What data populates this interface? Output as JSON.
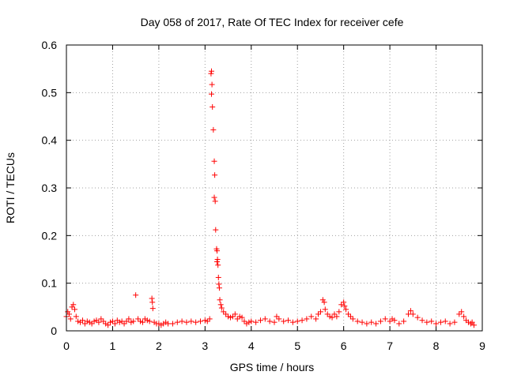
{
  "chart_data": {
    "type": "scatter",
    "title": "Day 058 of 2017, Rate Of TEC Index for receiver cefe",
    "xlabel": "GPS time / hours",
    "ylabel": "ROTI / TECUs",
    "xlim": [
      0,
      9
    ],
    "ylim": [
      0,
      0.6
    ],
    "xticks": [
      0,
      1,
      2,
      3,
      4,
      5,
      6,
      7,
      8,
      9
    ],
    "xtick_labels": [
      "0",
      "1",
      "2",
      "3",
      "4",
      "5",
      "6",
      "7",
      "8",
      "9"
    ],
    "yticks": [
      0,
      0.1,
      0.2,
      0.3,
      0.4,
      0.5,
      0.6
    ],
    "ytick_labels": [
      "0",
      "0.1",
      "0.2",
      "0.3",
      "0.4",
      "0.5",
      "0.6"
    ],
    "grid": true,
    "marker": "+",
    "color": "#ff0000",
    "series": [
      {
        "name": "ROTI",
        "points": [
          [
            0.0,
            0.03
          ],
          [
            0.03,
            0.04
          ],
          [
            0.06,
            0.035
          ],
          [
            0.09,
            0.025
          ],
          [
            0.12,
            0.05
          ],
          [
            0.15,
            0.055
          ],
          [
            0.18,
            0.045
          ],
          [
            0.21,
            0.03
          ],
          [
            0.25,
            0.02
          ],
          [
            0.3,
            0.018
          ],
          [
            0.35,
            0.022
          ],
          [
            0.4,
            0.015
          ],
          [
            0.45,
            0.02
          ],
          [
            0.5,
            0.018
          ],
          [
            0.55,
            0.015
          ],
          [
            0.6,
            0.02
          ],
          [
            0.65,
            0.022
          ],
          [
            0.7,
            0.018
          ],
          [
            0.75,
            0.025
          ],
          [
            0.8,
            0.02
          ],
          [
            0.85,
            0.015
          ],
          [
            0.9,
            0.012
          ],
          [
            0.95,
            0.018
          ],
          [
            1.0,
            0.02
          ],
          [
            1.05,
            0.015
          ],
          [
            1.1,
            0.022
          ],
          [
            1.15,
            0.018
          ],
          [
            1.2,
            0.02
          ],
          [
            1.25,
            0.015
          ],
          [
            1.3,
            0.02
          ],
          [
            1.35,
            0.025
          ],
          [
            1.4,
            0.018
          ],
          [
            1.45,
            0.02
          ],
          [
            1.5,
            0.075
          ],
          [
            1.55,
            0.025
          ],
          [
            1.6,
            0.02
          ],
          [
            1.65,
            0.018
          ],
          [
            1.7,
            0.025
          ],
          [
            1.75,
            0.022
          ],
          [
            1.8,
            0.02
          ],
          [
            1.85,
            0.068
          ],
          [
            1.86,
            0.06
          ],
          [
            1.87,
            0.047
          ],
          [
            1.9,
            0.018
          ],
          [
            1.95,
            0.015
          ],
          [
            2.0,
            0.015
          ],
          [
            2.05,
            0.012
          ],
          [
            2.1,
            0.015
          ],
          [
            2.15,
            0.018
          ],
          [
            2.2,
            0.015
          ],
          [
            2.3,
            0.015
          ],
          [
            2.4,
            0.018
          ],
          [
            2.5,
            0.02
          ],
          [
            2.6,
            0.018
          ],
          [
            2.7,
            0.02
          ],
          [
            2.8,
            0.018
          ],
          [
            2.9,
            0.02
          ],
          [
            3.0,
            0.022
          ],
          [
            3.05,
            0.02
          ],
          [
            3.1,
            0.025
          ],
          [
            3.13,
            0.54
          ],
          [
            3.14,
            0.545
          ],
          [
            3.15,
            0.517
          ],
          [
            3.14,
            0.497
          ],
          [
            3.16,
            0.47
          ],
          [
            3.18,
            0.422
          ],
          [
            3.2,
            0.356
          ],
          [
            3.21,
            0.327
          ],
          [
            3.2,
            0.28
          ],
          [
            3.22,
            0.272
          ],
          [
            3.23,
            0.212
          ],
          [
            3.25,
            0.172
          ],
          [
            3.26,
            0.168
          ],
          [
            3.27,
            0.15
          ],
          [
            3.26,
            0.145
          ],
          [
            3.28,
            0.138
          ],
          [
            3.29,
            0.112
          ],
          [
            3.3,
            0.098
          ],
          [
            3.31,
            0.09
          ],
          [
            3.32,
            0.065
          ],
          [
            3.34,
            0.055
          ],
          [
            3.36,
            0.048
          ],
          [
            3.4,
            0.04
          ],
          [
            3.45,
            0.035
          ],
          [
            3.5,
            0.03
          ],
          [
            3.55,
            0.028
          ],
          [
            3.6,
            0.03
          ],
          [
            3.65,
            0.035
          ],
          [
            3.7,
            0.025
          ],
          [
            3.75,
            0.03
          ],
          [
            3.8,
            0.028
          ],
          [
            3.85,
            0.02
          ],
          [
            3.9,
            0.015
          ],
          [
            3.95,
            0.018
          ],
          [
            4.0,
            0.02
          ],
          [
            4.1,
            0.018
          ],
          [
            4.2,
            0.022
          ],
          [
            4.3,
            0.025
          ],
          [
            4.4,
            0.02
          ],
          [
            4.5,
            0.018
          ],
          [
            4.55,
            0.03
          ],
          [
            4.6,
            0.025
          ],
          [
            4.7,
            0.02
          ],
          [
            4.8,
            0.022
          ],
          [
            4.9,
            0.018
          ],
          [
            5.0,
            0.02
          ],
          [
            5.1,
            0.022
          ],
          [
            5.2,
            0.025
          ],
          [
            5.3,
            0.03
          ],
          [
            5.4,
            0.025
          ],
          [
            5.45,
            0.035
          ],
          [
            5.5,
            0.04
          ],
          [
            5.55,
            0.065
          ],
          [
            5.58,
            0.06
          ],
          [
            5.6,
            0.045
          ],
          [
            5.65,
            0.035
          ],
          [
            5.7,
            0.03
          ],
          [
            5.75,
            0.028
          ],
          [
            5.8,
            0.035
          ],
          [
            5.85,
            0.03
          ],
          [
            5.9,
            0.04
          ],
          [
            5.95,
            0.055
          ],
          [
            6.0,
            0.06
          ],
          [
            6.02,
            0.052
          ],
          [
            6.05,
            0.045
          ],
          [
            6.1,
            0.035
          ],
          [
            6.15,
            0.03
          ],
          [
            6.2,
            0.025
          ],
          [
            6.3,
            0.02
          ],
          [
            6.4,
            0.018
          ],
          [
            6.5,
            0.015
          ],
          [
            6.6,
            0.018
          ],
          [
            6.7,
            0.015
          ],
          [
            6.8,
            0.02
          ],
          [
            6.9,
            0.025
          ],
          [
            7.0,
            0.02
          ],
          [
            7.05,
            0.025
          ],
          [
            7.1,
            0.022
          ],
          [
            7.2,
            0.015
          ],
          [
            7.3,
            0.02
          ],
          [
            7.4,
            0.035
          ],
          [
            7.45,
            0.042
          ],
          [
            7.5,
            0.035
          ],
          [
            7.6,
            0.028
          ],
          [
            7.7,
            0.022
          ],
          [
            7.8,
            0.018
          ],
          [
            7.9,
            0.02
          ],
          [
            8.0,
            0.015
          ],
          [
            8.1,
            0.018
          ],
          [
            8.2,
            0.02
          ],
          [
            8.3,
            0.015
          ],
          [
            8.4,
            0.018
          ],
          [
            8.5,
            0.035
          ],
          [
            8.55,
            0.04
          ],
          [
            8.6,
            0.03
          ],
          [
            8.65,
            0.022
          ],
          [
            8.7,
            0.018
          ],
          [
            8.75,
            0.015
          ],
          [
            8.78,
            0.018
          ],
          [
            8.82,
            0.012
          ]
        ]
      }
    ]
  }
}
